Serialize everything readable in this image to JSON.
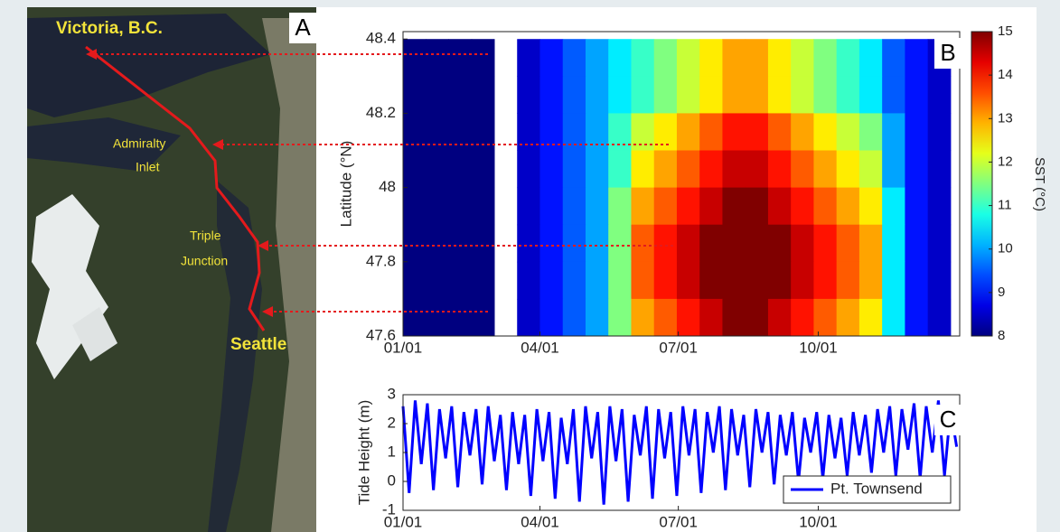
{
  "map": {
    "panel": "A",
    "labels": [
      "Victoria, B.C.",
      "Admiralty",
      "Inlet",
      "Triple",
      "Junction",
      "Seattle"
    ]
  },
  "chart_data": [
    {
      "type": "heatmap",
      "panel": "B",
      "y_label": "Latitude (°N)",
      "x": [
        7.5,
        22.5,
        37.5,
        52.5,
        67.5,
        82.5,
        97.5,
        112.5,
        127.5,
        142.5,
        157.5,
        172.5,
        187.5,
        202.5,
        217.5,
        232.5,
        247.5,
        262.5,
        277.5,
        292.5,
        307.5,
        322.5,
        337.5,
        352.5
      ],
      "y": [
        48.35,
        48.25,
        48.15,
        48.05,
        47.95,
        47.85,
        47.75,
        47.65
      ],
      "values": [
        [
          8,
          8,
          8,
          8,
          null,
          8.5,
          9,
          9.5,
          10,
          10.5,
          11,
          11.5,
          12,
          12.5,
          13,
          13,
          12.5,
          12,
          11.5,
          11,
          10.5,
          9.5,
          9,
          8.5
        ],
        [
          8,
          8,
          8,
          8,
          null,
          8.5,
          9,
          9.5,
          10,
          10.5,
          11,
          11.5,
          12,
          12.5,
          13,
          13,
          12.5,
          12,
          11.5,
          11,
          10.5,
          9.5,
          9,
          8.5
        ],
        [
          8,
          8,
          8,
          8,
          null,
          8.5,
          9,
          9.5,
          10,
          11,
          12,
          12.5,
          13,
          13.5,
          14,
          14,
          13.5,
          13,
          12.5,
          12,
          11.5,
          10,
          9,
          8.5
        ],
        [
          8,
          8,
          8,
          8,
          null,
          8.5,
          9,
          9.5,
          10,
          11,
          12.5,
          13,
          13.5,
          14,
          14.5,
          14.5,
          14,
          13.5,
          13,
          12.5,
          12,
          10,
          9,
          8.5
        ],
        [
          8,
          8,
          8,
          8,
          null,
          8.5,
          9,
          9.5,
          10,
          11.5,
          13,
          13.5,
          14,
          14.5,
          15,
          15,
          14.5,
          14,
          13.5,
          13,
          12.5,
          10.5,
          9,
          8.5
        ],
        [
          8,
          8,
          8,
          8,
          null,
          8.5,
          9,
          9.5,
          10,
          11.5,
          13.5,
          14,
          14.5,
          15,
          15,
          15,
          15,
          14.5,
          14,
          13.5,
          13,
          10.5,
          9,
          8.5
        ],
        [
          8,
          8,
          8,
          8,
          null,
          8.5,
          9,
          9.5,
          10,
          11.5,
          13.5,
          14,
          14.5,
          15,
          15,
          15,
          15,
          14.5,
          14,
          13.5,
          13,
          10.5,
          9,
          8.5
        ],
        [
          8,
          8,
          8,
          8,
          null,
          8.5,
          9,
          9.5,
          10,
          11.5,
          13,
          13.5,
          14,
          14.5,
          15,
          15,
          14.5,
          14,
          13.5,
          13,
          12.5,
          10.5,
          9,
          8.5
        ]
      ],
      "xlim": [
        0,
        366
      ],
      "xticks": [
        {
          "value": 0,
          "label": "01/01"
        },
        {
          "value": 90,
          "label": "04/01"
        },
        {
          "value": 181,
          "label": "07/01"
        },
        {
          "value": 273,
          "label": "10/01"
        }
      ],
      "ylim": [
        47.6,
        48.42
      ],
      "yticks": [
        47.6,
        47.8,
        48,
        48.2,
        48.4
      ],
      "colorbar": {
        "label": "SST (°C)",
        "lim": [
          8,
          15
        ],
        "ticks": [
          8,
          9,
          10,
          11,
          12,
          13,
          14,
          15
        ]
      }
    },
    {
      "type": "line",
      "panel": "C",
      "y_label": "Tide Height (m)",
      "x": [
        0,
        4,
        8,
        12,
        16,
        20,
        24,
        28,
        32,
        36,
        40,
        44,
        48,
        52,
        56,
        60,
        64,
        68,
        72,
        76,
        80,
        84,
        88,
        92,
        96,
        100,
        104,
        108,
        112,
        116,
        120,
        124,
        128,
        132,
        136,
        140,
        144,
        148,
        152,
        156,
        160,
        164,
        168,
        172,
        176,
        180,
        184,
        188,
        192,
        196,
        200,
        204,
        208,
        212,
        216,
        220,
        224,
        228,
        232,
        236,
        240,
        244,
        248,
        252,
        256,
        260,
        264,
        268,
        272,
        276,
        280,
        284,
        288,
        292,
        296,
        300,
        304,
        308,
        312,
        316,
        320,
        324,
        328,
        332,
        336,
        340,
        344,
        348,
        352,
        356,
        360,
        364
      ],
      "xlim": [
        0,
        366
      ],
      "xticks": [
        {
          "value": 0,
          "label": "01/01"
        },
        {
          "value": 90,
          "label": "04/01"
        },
        {
          "value": 181,
          "label": "07/01"
        },
        {
          "value": 273,
          "label": "10/01"
        }
      ],
      "ylim": [
        -1,
        3
      ],
      "yticks": [
        -1,
        0,
        1,
        2,
        3
      ],
      "legend": "lower right",
      "series": [
        {
          "name": "Pt. Townsend",
          "color": "#0000ff",
          "values": [
            2.6,
            -0.4,
            2.8,
            0.6,
            2.7,
            -0.3,
            2.5,
            0.8,
            2.6,
            -0.2,
            2.4,
            0.9,
            2.5,
            -0.1,
            2.6,
            0.7,
            2.3,
            -0.3,
            2.4,
            0.6,
            2.3,
            -0.5,
            2.5,
            0.7,
            2.4,
            -0.6,
            2.2,
            0.6,
            2.5,
            -0.7,
            2.6,
            0.8,
            2.4,
            -0.8,
            2.6,
            0.7,
            2.5,
            -0.7,
            2.3,
            0.9,
            2.6,
            -0.6,
            2.5,
            0.8,
            2.4,
            -0.5,
            2.6,
            0.9,
            2.5,
            -0.4,
            2.4,
            1.0,
            2.6,
            -0.3,
            2.5,
            0.9,
            2.3,
            -0.2,
            2.5,
            1.0,
            2.4,
            -0.1,
            2.3,
            0.9,
            2.4,
            0.0,
            2.2,
            1.0,
            2.4,
            0.1,
            2.3,
            0.8,
            2.2,
            0.2,
            2.4,
            0.9,
            2.3,
            0.3,
            2.5,
            1.0,
            2.6,
            0.2,
            2.5,
            1.1,
            2.7,
            0.1,
            2.6,
            1.0,
            2.8,
            0.2,
            2.5,
            1.2
          ]
        }
      ]
    }
  ]
}
